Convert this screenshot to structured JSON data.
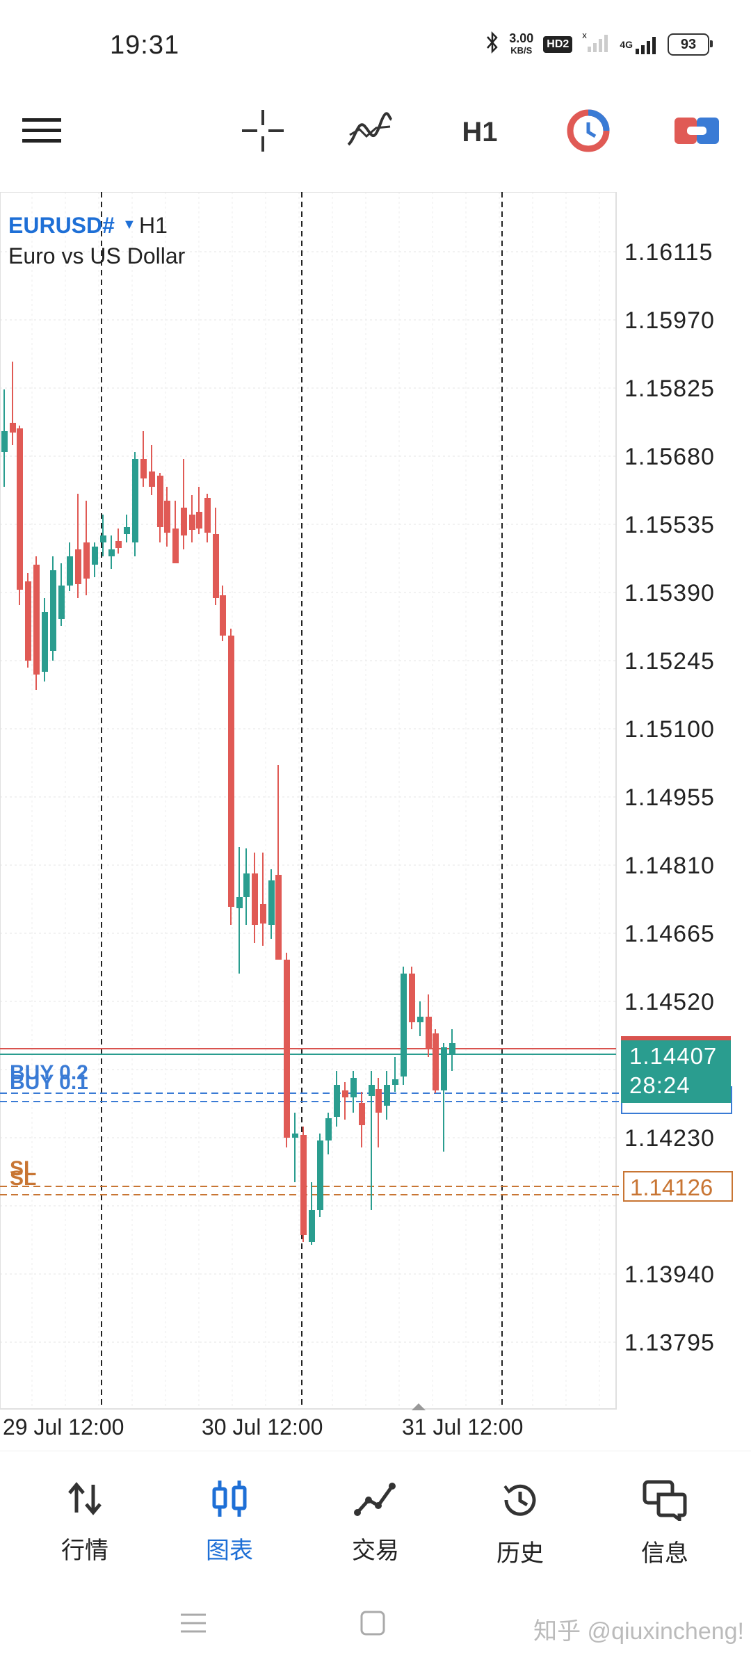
{
  "status_bar": {
    "time": "19:31",
    "net_speed_value": "3.00",
    "net_speed_unit": "KB/S",
    "hd_badge": "HD2",
    "signal_4g": "4G",
    "battery": "93"
  },
  "toolbar": {
    "icons": [
      "menu-icon",
      "crosshair-icon",
      "indicators-icon",
      "h1-timeframe",
      "clock-trade-icon",
      "toggle-icon"
    ],
    "timeframe": "H1"
  },
  "chart": {
    "symbol": "EURUSD#",
    "timeframe": "H1",
    "description": "Euro vs US Dollar",
    "price_levels": [
      "1.16115",
      "1.15970",
      "1.15825",
      "1.15680",
      "1.15535",
      "1.15390",
      "1.15245",
      "1.15100",
      "1.14955",
      "1.14810",
      "1.14665",
      "1.14520",
      "1.14230",
      "1.13940",
      "1.13795"
    ],
    "current_price": "1.14407",
    "countdown": "28:24",
    "sl_price": "1.14126",
    "buy_labels": [
      "BUY 0.2",
      "BUY 0.1"
    ],
    "sl_labels": [
      "SL",
      "SL"
    ],
    "date_labels": [
      "29 Jul 12:00",
      "30 Jul 12:00",
      "31 Jul 12:00"
    ],
    "colors": {
      "bull": "#2a9d8f",
      "bear": "#e05a55",
      "buy_line": "#3a7bd5",
      "sl_line": "#c87533"
    }
  },
  "bottom_nav": {
    "items": [
      {
        "label": "行情",
        "icon": "quotes-arrows-icon"
      },
      {
        "label": "图表",
        "icon": "chart-candles-icon",
        "active": true
      },
      {
        "label": "交易",
        "icon": "trade-line-icon"
      },
      {
        "label": "历史",
        "icon": "history-clock-icon"
      },
      {
        "label": "信息",
        "icon": "messages-icon"
      }
    ]
  },
  "watermark": "知乎 @qiuxincheng!"
}
